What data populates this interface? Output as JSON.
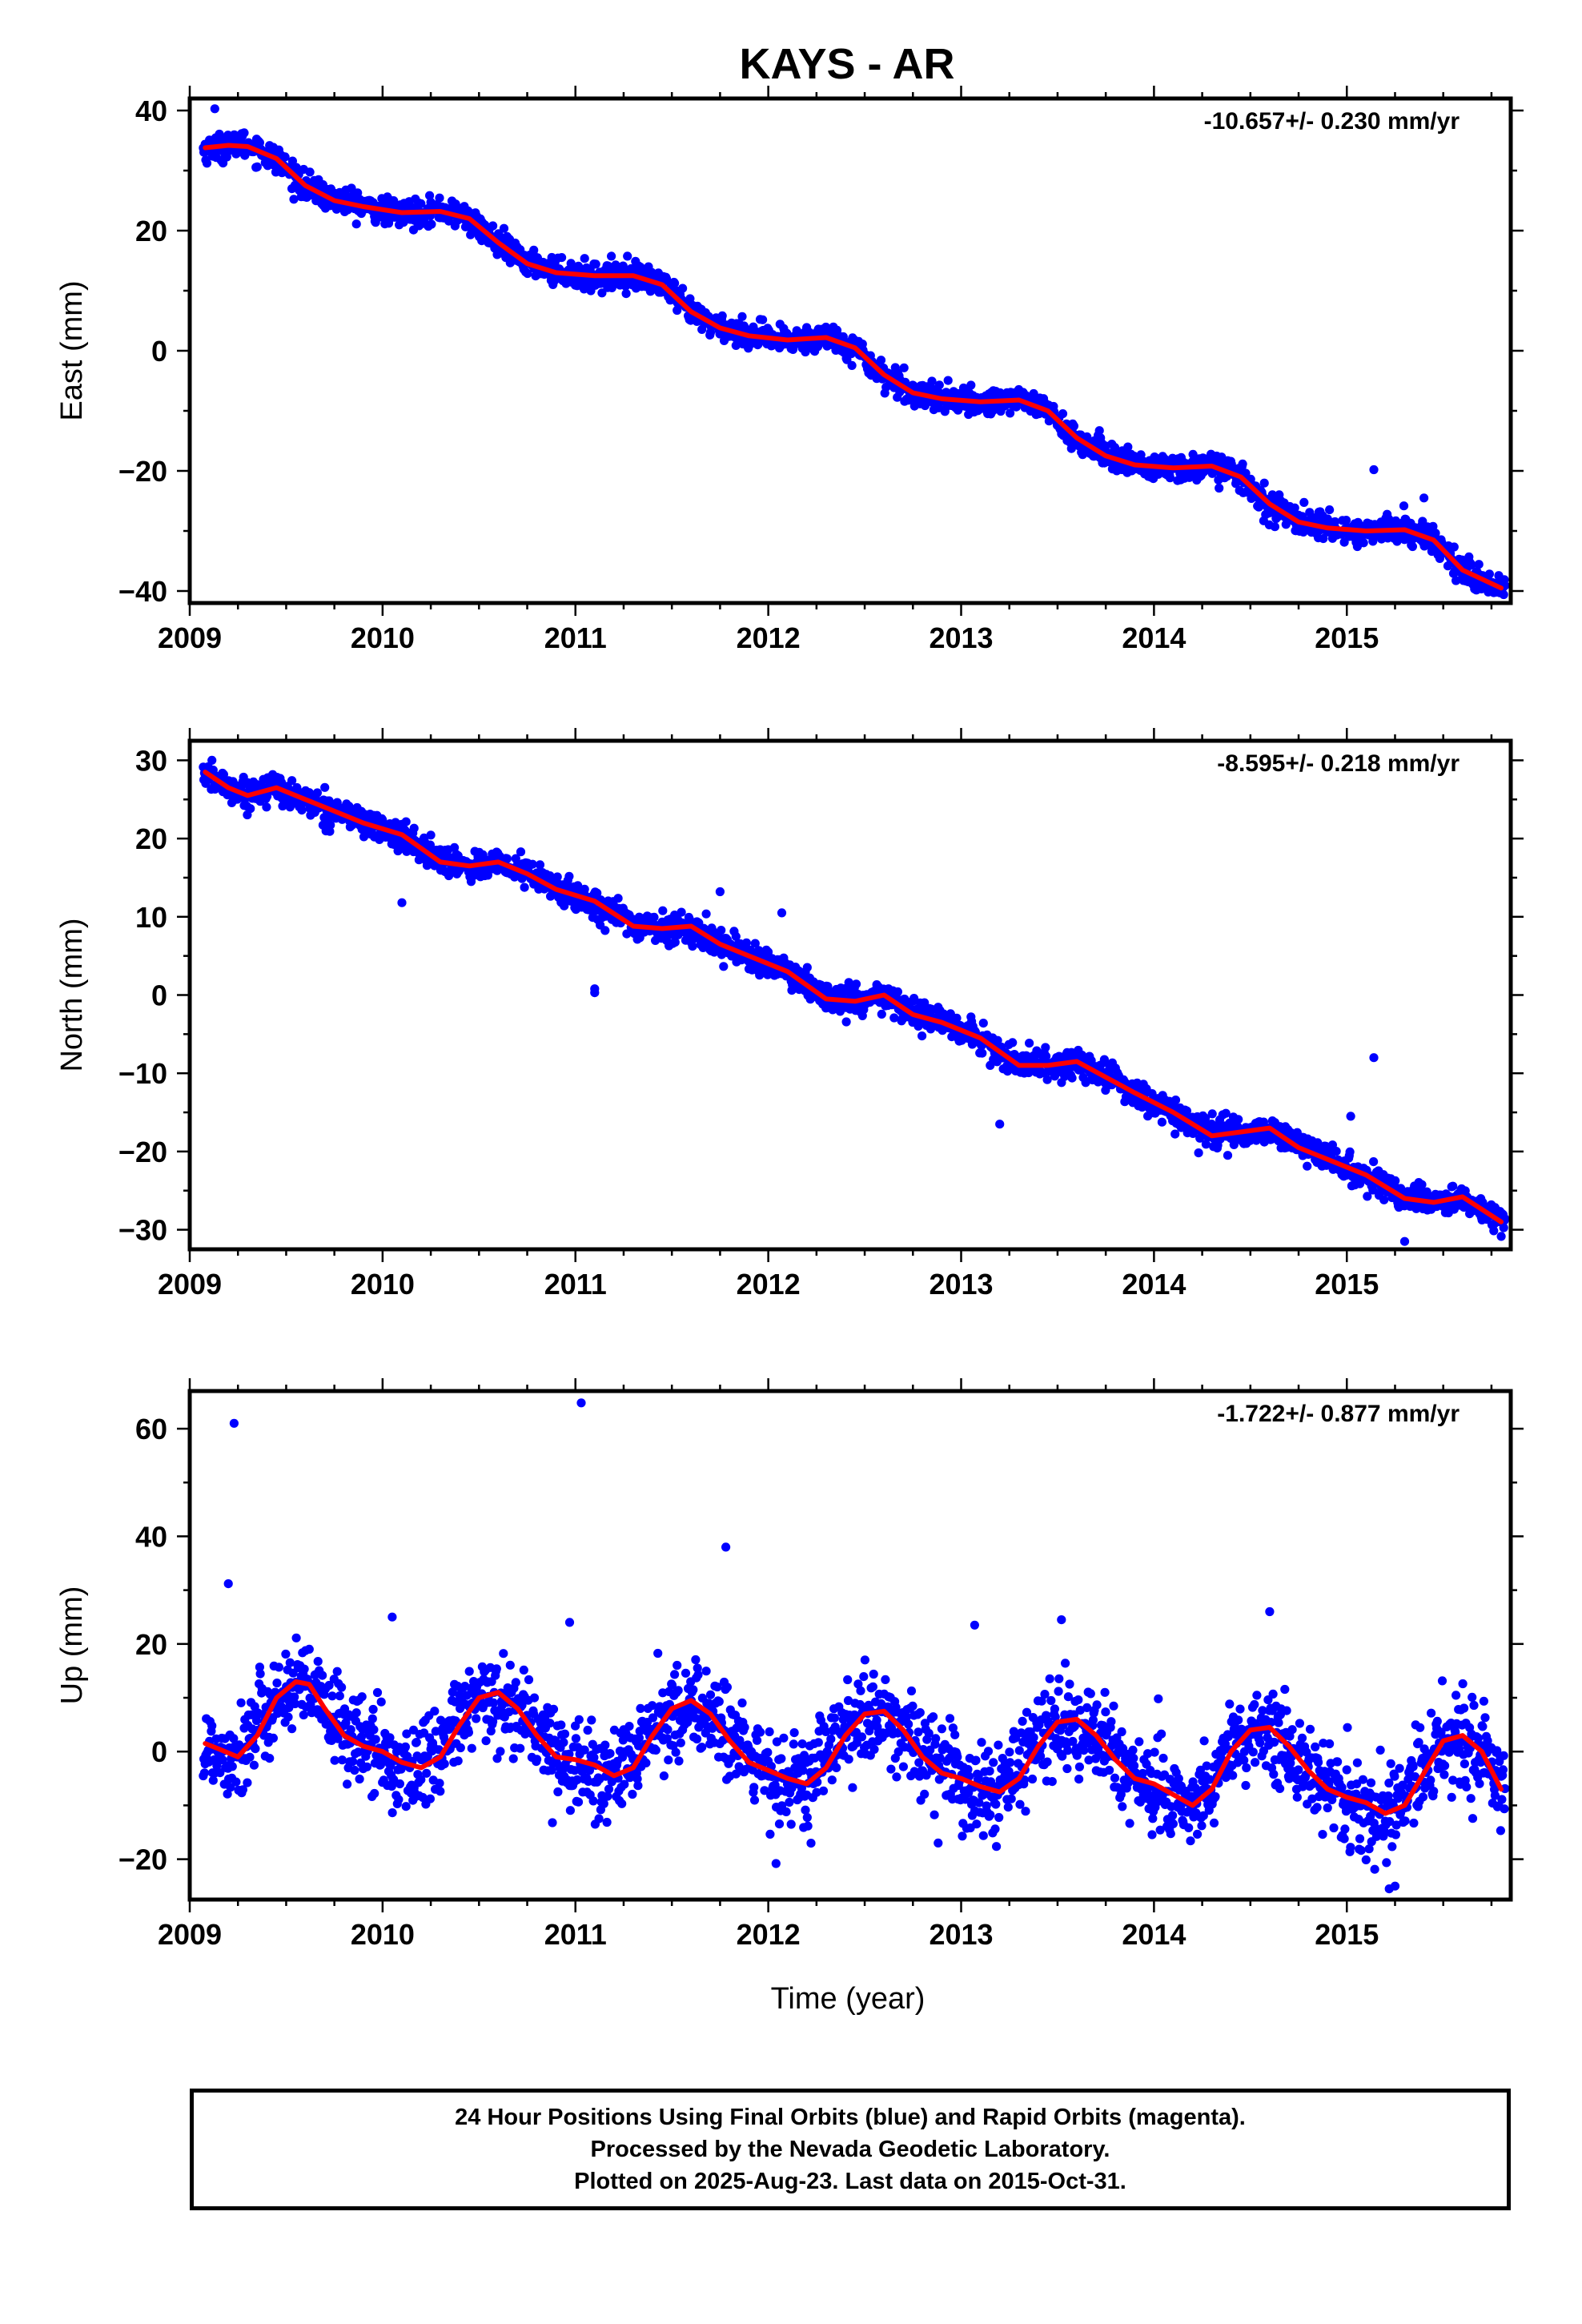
{
  "title": "KAYS - AR",
  "footer": {
    "line1": "24 Hour Positions Using Final Orbits (blue) and Rapid Orbits (magenta).",
    "line2": "Processed by the Nevada Geodetic Laboratory.",
    "line3": "Plotted on 2025-Aug-23. Last data on 2015-Oct-31."
  },
  "colors": {
    "final_orbits": "#0000ff",
    "fit_line": "#ff0000",
    "frame": "#000000"
  },
  "chart_data": [
    {
      "type": "scatter",
      "ylabel": "East (mm)",
      "xlabel": "",
      "rate_label": "-10.657+/- 0.230 mm/yr",
      "xlim": [
        2009.0,
        2015.85
      ],
      "ylim": [
        -42,
        42
      ],
      "xticks": [
        2009,
        2010,
        2011,
        2012,
        2013,
        2014,
        2015
      ],
      "yticks": [
        -40,
        -20,
        0,
        20,
        40
      ],
      "series": [
        {
          "role": "fit",
          "x": [
            2009.08,
            2009.2,
            2009.3,
            2009.45,
            2009.6,
            2009.75,
            2009.9,
            2010.1,
            2010.3,
            2010.45,
            2010.6,
            2010.75,
            2010.9,
            2011.1,
            2011.3,
            2011.45,
            2011.6,
            2011.75,
            2011.9,
            2012.1,
            2012.3,
            2012.45,
            2012.6,
            2012.75,
            2012.9,
            2013.1,
            2013.3,
            2013.45,
            2013.6,
            2013.75,
            2013.9,
            2014.1,
            2014.3,
            2014.45,
            2014.6,
            2014.75,
            2014.9,
            2015.1,
            2015.3,
            2015.45,
            2015.6,
            2015.8
          ],
          "y": [
            33.8,
            34.2,
            34.0,
            32.0,
            27.5,
            25.0,
            24.0,
            23.0,
            23.2,
            22.0,
            18.0,
            14.5,
            13.0,
            12.5,
            12.5,
            11.0,
            6.5,
            3.8,
            2.5,
            1.8,
            2.2,
            0.5,
            -4.0,
            -7.0,
            -8.0,
            -8.5,
            -8.2,
            -10.0,
            -14.5,
            -17.5,
            -19.0,
            -19.5,
            -19.2,
            -21.0,
            -25.5,
            -28.5,
            -29.5,
            -30.0,
            -29.8,
            -31.5,
            -36.5,
            -39.5
          ]
        }
      ],
      "scatter_model": {
        "seasonal_amp": 0.9,
        "noise_sd": 1.1,
        "count": 2100,
        "outliers": [
          [
            2009.13,
            40.3
          ],
          [
            2015.14,
            -19.8
          ],
          [
            2015.4,
            -24.5
          ]
        ]
      }
    },
    {
      "type": "scatter",
      "ylabel": "North (mm)",
      "xlabel": "",
      "rate_label": "-8.595+/- 0.218 mm/yr",
      "xlim": [
        2009.0,
        2015.85
      ],
      "ylim": [
        -32.5,
        32.5
      ],
      "xticks": [
        2009,
        2010,
        2011,
        2012,
        2013,
        2014,
        2015
      ],
      "yticks": [
        -30,
        -20,
        -10,
        0,
        10,
        20,
        30
      ],
      "series": [
        {
          "role": "fit",
          "x": [
            2009.08,
            2009.2,
            2009.3,
            2009.45,
            2009.6,
            2009.75,
            2009.9,
            2010.1,
            2010.3,
            2010.45,
            2010.6,
            2010.75,
            2010.9,
            2011.1,
            2011.3,
            2011.45,
            2011.6,
            2011.75,
            2011.9,
            2012.1,
            2012.3,
            2012.45,
            2012.6,
            2012.75,
            2012.9,
            2013.1,
            2013.3,
            2013.45,
            2013.6,
            2013.75,
            2013.9,
            2014.1,
            2014.3,
            2014.45,
            2014.6,
            2014.75,
            2014.9,
            2015.1,
            2015.3,
            2015.45,
            2015.6,
            2015.8
          ],
          "y": [
            28.5,
            26.5,
            25.5,
            26.5,
            25.0,
            23.5,
            22.0,
            20.5,
            17.0,
            16.5,
            17.0,
            15.5,
            13.5,
            12.0,
            8.8,
            8.5,
            8.8,
            6.5,
            5.0,
            3.0,
            -0.5,
            -0.8,
            0.0,
            -2.5,
            -3.5,
            -5.5,
            -9.0,
            -9.0,
            -8.5,
            -10.5,
            -12.5,
            -15.0,
            -18.0,
            -17.5,
            -17.0,
            -19.5,
            -21.0,
            -23.0,
            -26.0,
            -26.5,
            -25.8,
            -29.0
          ]
        }
      ],
      "scatter_model": {
        "seasonal_amp": 0.8,
        "noise_sd": 0.9,
        "count": 2100,
        "outliers": [
          [
            2010.1,
            11.8
          ],
          [
            2011.1,
            0.8
          ],
          [
            2011.1,
            0.3
          ],
          [
            2011.75,
            13.2
          ],
          [
            2012.07,
            10.5
          ],
          [
            2013.2,
            -16.5
          ],
          [
            2015.14,
            -8.0
          ],
          [
            2015.02,
            -15.5
          ],
          [
            2015.3,
            -31.5
          ]
        ]
      }
    },
    {
      "type": "scatter",
      "ylabel": "Up (mm)",
      "xlabel": "Time (year)",
      "rate_label": "-1.722+/- 0.877 mm/yr",
      "xlim": [
        2009.0,
        2015.85
      ],
      "ylim": [
        -27.5,
        67
      ],
      "xticks": [
        2009,
        2010,
        2011,
        2012,
        2013,
        2014,
        2015
      ],
      "yticks": [
        -20,
        0,
        20,
        40,
        60
      ],
      "series": [
        {
          "role": "fit",
          "x": [
            2009.08,
            2009.15,
            2009.25,
            2009.35,
            2009.45,
            2009.55,
            2009.62,
            2009.7,
            2009.8,
            2009.9,
            2010.0,
            2010.1,
            2010.2,
            2010.3,
            2010.4,
            2010.5,
            2010.6,
            2010.7,
            2010.8,
            2010.9,
            2011.0,
            2011.1,
            2011.2,
            2011.3,
            2011.4,
            2011.5,
            2011.6,
            2011.7,
            2011.8,
            2011.9,
            2012.0,
            2012.1,
            2012.2,
            2012.3,
            2012.4,
            2012.5,
            2012.6,
            2012.7,
            2012.8,
            2012.9,
            2013.0,
            2013.1,
            2013.2,
            2013.3,
            2013.4,
            2013.5,
            2013.6,
            2013.7,
            2013.8,
            2013.9,
            2014.0,
            2014.1,
            2014.2,
            2014.3,
            2014.4,
            2014.5,
            2014.6,
            2014.7,
            2014.8,
            2014.9,
            2015.0,
            2015.1,
            2015.2,
            2015.3,
            2015.4,
            2015.5,
            2015.6,
            2015.7,
            2015.8
          ],
          "y": [
            1.5,
            0.5,
            -1.0,
            3.0,
            10.0,
            13.0,
            12.5,
            8.0,
            3.0,
            1.0,
            0.0,
            -2.0,
            -3.0,
            -1.0,
            5.0,
            10.0,
            11.0,
            8.0,
            3.0,
            -1.0,
            -1.5,
            -2.5,
            -4.5,
            -3.0,
            3.0,
            8.0,
            9.5,
            7.0,
            2.0,
            -2.0,
            -3.5,
            -5.0,
            -6.0,
            -3.0,
            3.0,
            7.0,
            7.5,
            4.0,
            -1.0,
            -4.0,
            -5.0,
            -6.5,
            -7.5,
            -5.0,
            1.0,
            5.5,
            6.0,
            3.0,
            -1.5,
            -5.0,
            -6.0,
            -8.0,
            -10.0,
            -7.0,
            0.0,
            4.0,
            4.5,
            1.0,
            -3.5,
            -7.0,
            -8.5,
            -9.5,
            -11.5,
            -10.0,
            -4.0,
            2.0,
            3.0,
            0.0,
            -7.0
          ]
        }
      ],
      "scatter_model": {
        "seasonal_amp": 4.0,
        "noise_sd": 4.2,
        "count": 2100,
        "outliers": [
          [
            2009.23,
            61.0
          ],
          [
            2011.03,
            64.8
          ],
          [
            2011.78,
            38.0
          ],
          [
            2009.2,
            31.2
          ],
          [
            2010.05,
            25.0
          ],
          [
            2010.97,
            24.0
          ],
          [
            2012.04,
            -20.8
          ],
          [
            2013.07,
            23.5
          ],
          [
            2013.52,
            24.5
          ],
          [
            2014.6,
            26.0
          ],
          [
            2015.22,
            -25.5
          ],
          [
            2015.25,
            -25.0
          ]
        ]
      }
    }
  ]
}
